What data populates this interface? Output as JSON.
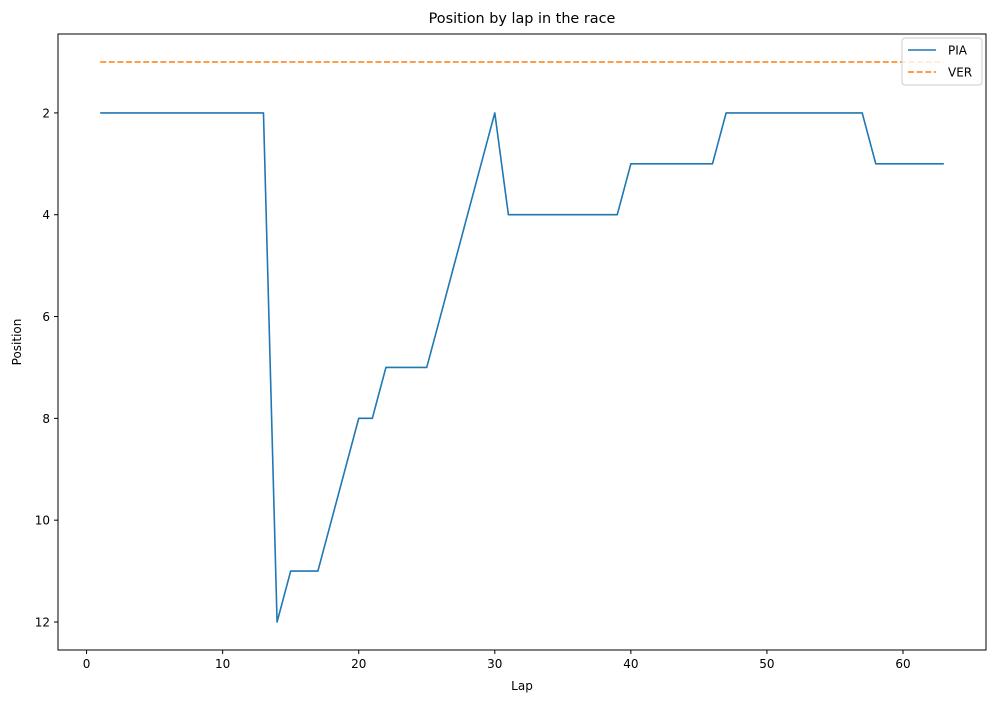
{
  "chart_data": {
    "type": "line",
    "title": "Position by lap in the race",
    "xlabel": "Lap",
    "ylabel": "Position",
    "xlim": [
      -2.1,
      66.1
    ],
    "ylim": [
      12.55,
      0.45
    ],
    "y_inverted": true,
    "xticks": [
      0,
      10,
      20,
      30,
      40,
      50,
      60
    ],
    "yticks": [
      2,
      4,
      6,
      8,
      10,
      12
    ],
    "grid": false,
    "legend_position": "top-right",
    "series": [
      {
        "name": "PIA",
        "color": "#1f77b4",
        "linestyle": "solid",
        "x": [
          1,
          2,
          3,
          4,
          5,
          6,
          7,
          8,
          9,
          10,
          11,
          12,
          13,
          14,
          15,
          16,
          17,
          18,
          19,
          20,
          21,
          22,
          23,
          24,
          25,
          26,
          27,
          28,
          29,
          30,
          31,
          32,
          33,
          34,
          35,
          36,
          37,
          38,
          39,
          40,
          41,
          42,
          43,
          44,
          45,
          46,
          47,
          48,
          49,
          50,
          51,
          52,
          53,
          54,
          55,
          56,
          57,
          58,
          59,
          60,
          61,
          62,
          63
        ],
        "y": [
          2,
          2,
          2,
          2,
          2,
          2,
          2,
          2,
          2,
          2,
          2,
          2,
          2,
          12,
          11,
          11,
          11,
          10,
          9,
          8,
          8,
          7,
          7,
          7,
          7,
          6,
          5,
          4,
          3,
          2,
          4,
          4,
          4,
          4,
          4,
          4,
          4,
          4,
          4,
          3,
          3,
          3,
          3,
          3,
          3,
          3,
          2,
          2,
          2,
          2,
          2,
          2,
          2,
          2,
          2,
          2,
          2,
          3,
          3,
          3,
          3,
          3,
          3
        ]
      },
      {
        "name": "VER",
        "color": "#ff7f0e",
        "linestyle": "dashed",
        "x": [
          1,
          2,
          3,
          4,
          5,
          6,
          7,
          8,
          9,
          10,
          11,
          12,
          13,
          14,
          15,
          16,
          17,
          18,
          19,
          20,
          21,
          22,
          23,
          24,
          25,
          26,
          27,
          28,
          29,
          30,
          31,
          32,
          33,
          34,
          35,
          36,
          37,
          38,
          39,
          40,
          41,
          42,
          43,
          44,
          45,
          46,
          47,
          48,
          49,
          50,
          51,
          52,
          53,
          54,
          55,
          56,
          57,
          58,
          59,
          60,
          61,
          62,
          63
        ],
        "y": [
          1,
          1,
          1,
          1,
          1,
          1,
          1,
          1,
          1,
          1,
          1,
          1,
          1,
          1,
          1,
          1,
          1,
          1,
          1,
          1,
          1,
          1,
          1,
          1,
          1,
          1,
          1,
          1,
          1,
          1,
          1,
          1,
          1,
          1,
          1,
          1,
          1,
          1,
          1,
          1,
          1,
          1,
          1,
          1,
          1,
          1,
          1,
          1,
          1,
          1,
          1,
          1,
          1,
          1,
          1,
          1,
          1,
          1,
          1,
          1,
          1,
          1,
          1
        ]
      }
    ]
  }
}
